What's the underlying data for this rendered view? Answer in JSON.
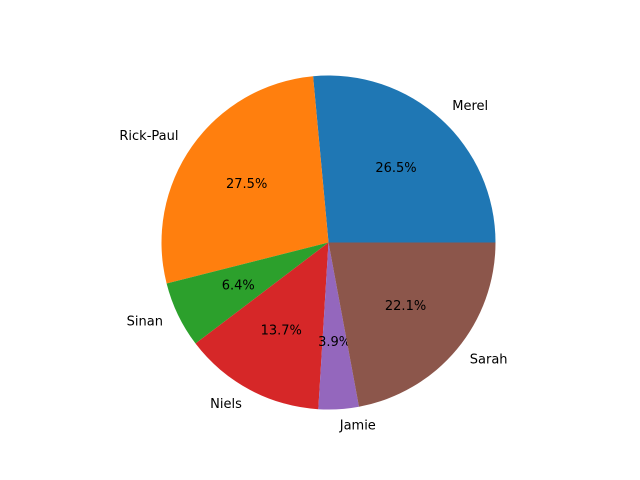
{
  "chart_data": {
    "type": "pie",
    "start_angle_deg": 0,
    "direction": "counterclockwise",
    "slices": [
      {
        "label": "Merel",
        "percent": 26.5,
        "pct_text": "26.5%",
        "color": "#1f77b4"
      },
      {
        "label": "Rick-Paul",
        "percent": 27.5,
        "pct_text": "27.5%",
        "color": "#ff7f0e"
      },
      {
        "label": "Sinan",
        "percent": 6.4,
        "pct_text": "6.4%",
        "color": "#2ca02c"
      },
      {
        "label": "Niels",
        "percent": 13.7,
        "pct_text": "13.7%",
        "color": "#d62728"
      },
      {
        "label": "Jamie",
        "percent": 3.9,
        "pct_text": "3.9%",
        "color": "#9467bd"
      },
      {
        "label": "Sarah",
        "percent": 22.1,
        "pct_text": "22.1%",
        "color": "#8c564b"
      }
    ]
  }
}
